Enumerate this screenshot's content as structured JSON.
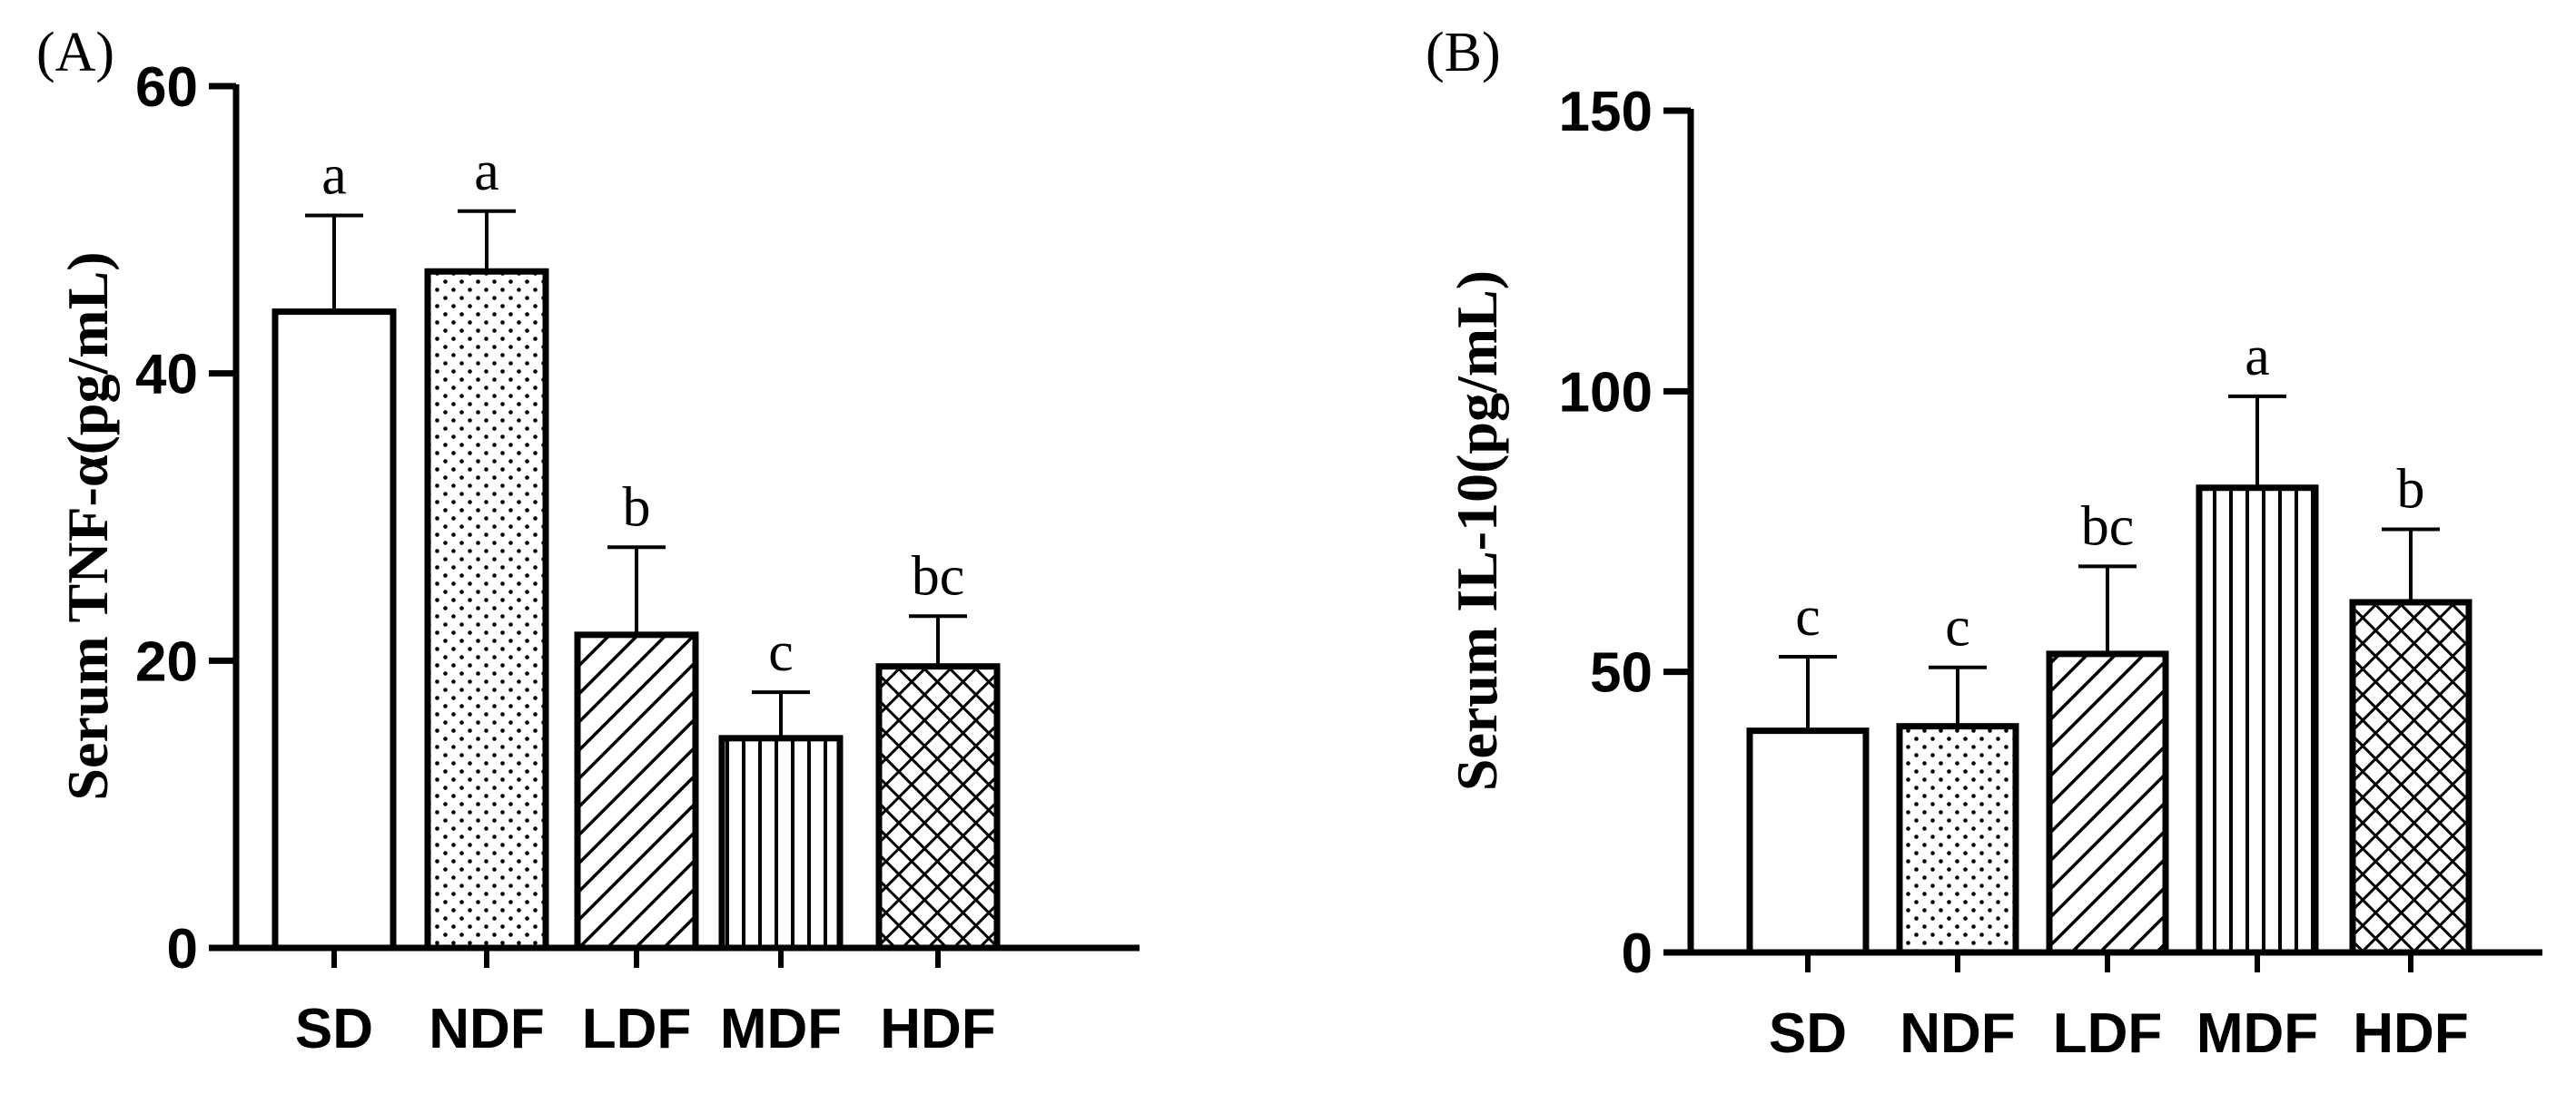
{
  "chart_data": [
    {
      "type": "bar",
      "panel": "(A)",
      "categories": [
        "SD",
        "NDF",
        "LDF",
        "MDF",
        "HDF"
      ],
      "values": [
        44.3,
        47.1,
        21.8,
        14.6,
        19.6
      ],
      "errors": [
        6.7,
        4.2,
        6.1,
        3.2,
        3.5
      ],
      "significance": [
        "a",
        "a",
        "b",
        "c",
        "bc"
      ],
      "patterns": [
        "blank",
        "dots",
        "diagonal",
        "vertical",
        "crosshatch"
      ],
      "ylabel": "Serum TNF-α(pg/mL)",
      "xlabel": "",
      "ylim": [
        0,
        60
      ],
      "yticks": [
        0,
        20,
        40,
        60
      ]
    },
    {
      "type": "bar",
      "panel": "(B)",
      "categories": [
        "SD",
        "NDF",
        "LDF",
        "MDF",
        "HDF"
      ],
      "values": [
        39.5,
        40.3,
        53.2,
        82.8,
        62.4
      ],
      "errors": [
        13.2,
        10.5,
        15.6,
        16.3,
        13.0
      ],
      "significance": [
        "c",
        "c",
        "bc",
        "a",
        "b"
      ],
      "patterns": [
        "blank",
        "dots",
        "diagonal",
        "vertical",
        "crosshatch"
      ],
      "ylabel": "Serum IL-10(pg/mL)",
      "xlabel": "",
      "ylim": [
        0,
        150
      ],
      "yticks": [
        0,
        50,
        100,
        150
      ]
    }
  ]
}
